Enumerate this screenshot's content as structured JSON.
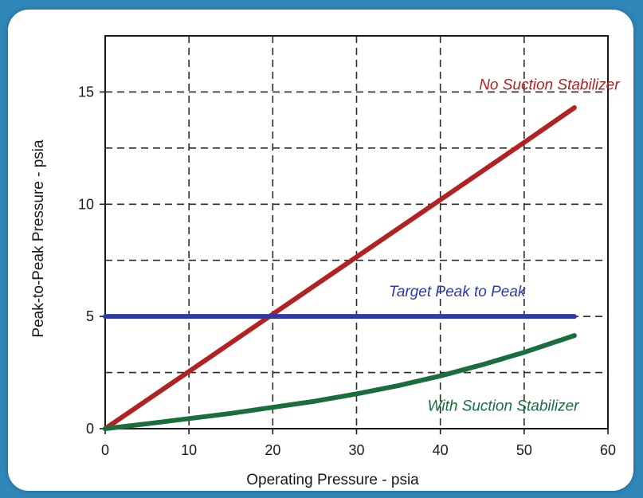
{
  "chart_data": {
    "type": "line",
    "title": "",
    "xlabel": "Operating Pressure - psia",
    "ylabel": "Peak-to-Peak Pressure - psia",
    "xlim": [
      0,
      60
    ],
    "ylim": [
      0,
      17.5
    ],
    "xticks": [
      0,
      10,
      20,
      30,
      40,
      50,
      60
    ],
    "yticks": [
      0,
      5,
      10,
      15
    ],
    "grid": true,
    "legend": "inline labels",
    "series": [
      {
        "name": "No Suction Stabilizer",
        "color": "#b22222",
        "x": [
          0,
          10,
          20,
          30,
          40,
          50,
          56
        ],
        "y": [
          0,
          2.55,
          5.1,
          7.65,
          10.2,
          12.75,
          14.3
        ]
      },
      {
        "name": "Target Peak to Peak",
        "color": "#2f3aa8",
        "x": [
          0,
          56
        ],
        "y": [
          5,
          5
        ]
      },
      {
        "name": "With Suction Stabilizer",
        "color": "#1a6e3c",
        "x": [
          0,
          5,
          10,
          15,
          20,
          25,
          30,
          35,
          40,
          45,
          50,
          56
        ],
        "y": [
          0,
          0.22,
          0.45,
          0.68,
          0.95,
          1.22,
          1.55,
          1.92,
          2.35,
          2.85,
          3.4,
          4.15
        ]
      }
    ]
  }
}
